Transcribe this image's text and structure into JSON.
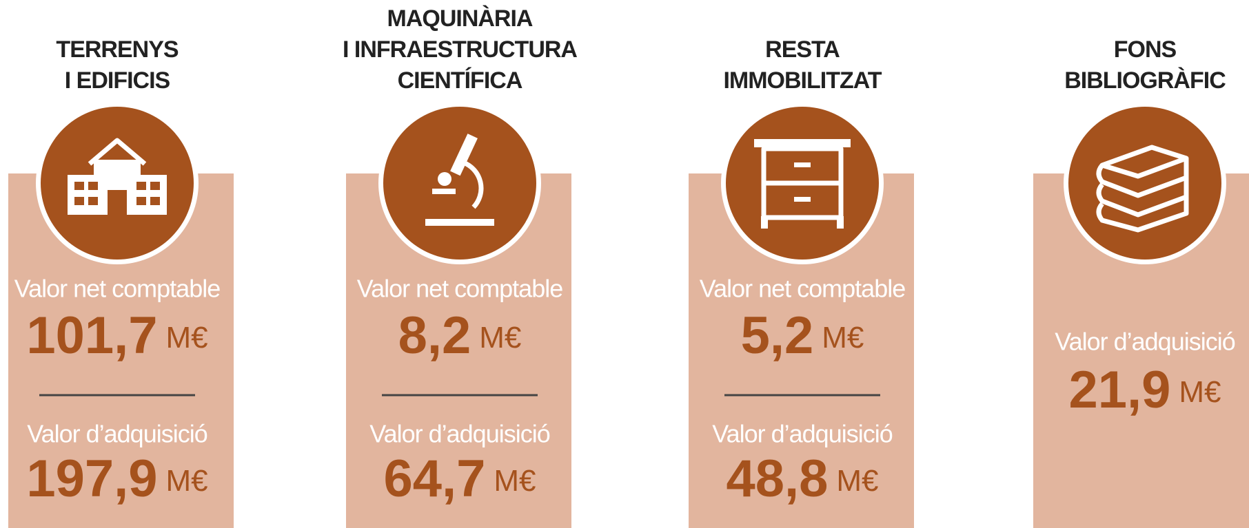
{
  "columns": [
    {
      "title": [
        "TERRENYS",
        "I EDIFICIS"
      ],
      "items": [
        {
          "label": "Valor net comptable",
          "value": "101,7",
          "unit": "M€"
        },
        {
          "label": "Valor d’adquisició",
          "value": "197,9",
          "unit": "M€"
        }
      ]
    },
    {
      "title": [
        "MAQUINÀRIA",
        "I INFRAESTRUCTURA",
        "CIENTÍFICA"
      ],
      "items": [
        {
          "label": "Valor net comptable",
          "value": "8,2",
          "unit": "M€"
        },
        {
          "label": "Valor d’adquisició",
          "value": "64,7",
          "unit": "M€"
        }
      ]
    },
    {
      "title": [
        "RESTA",
        "IMMOBILITZAT"
      ],
      "items": [
        {
          "label": "Valor net comptable",
          "value": "5,2",
          "unit": "M€"
        },
        {
          "label": "Valor d’adquisició",
          "value": "48,8",
          "unit": "M€"
        }
      ]
    },
    {
      "title": [
        "FONS",
        "BIBLIOGRÀFIC"
      ],
      "items": [
        {
          "label": "Valor d’adquisició",
          "value": "21,9",
          "unit": "M€"
        }
      ]
    }
  ]
}
